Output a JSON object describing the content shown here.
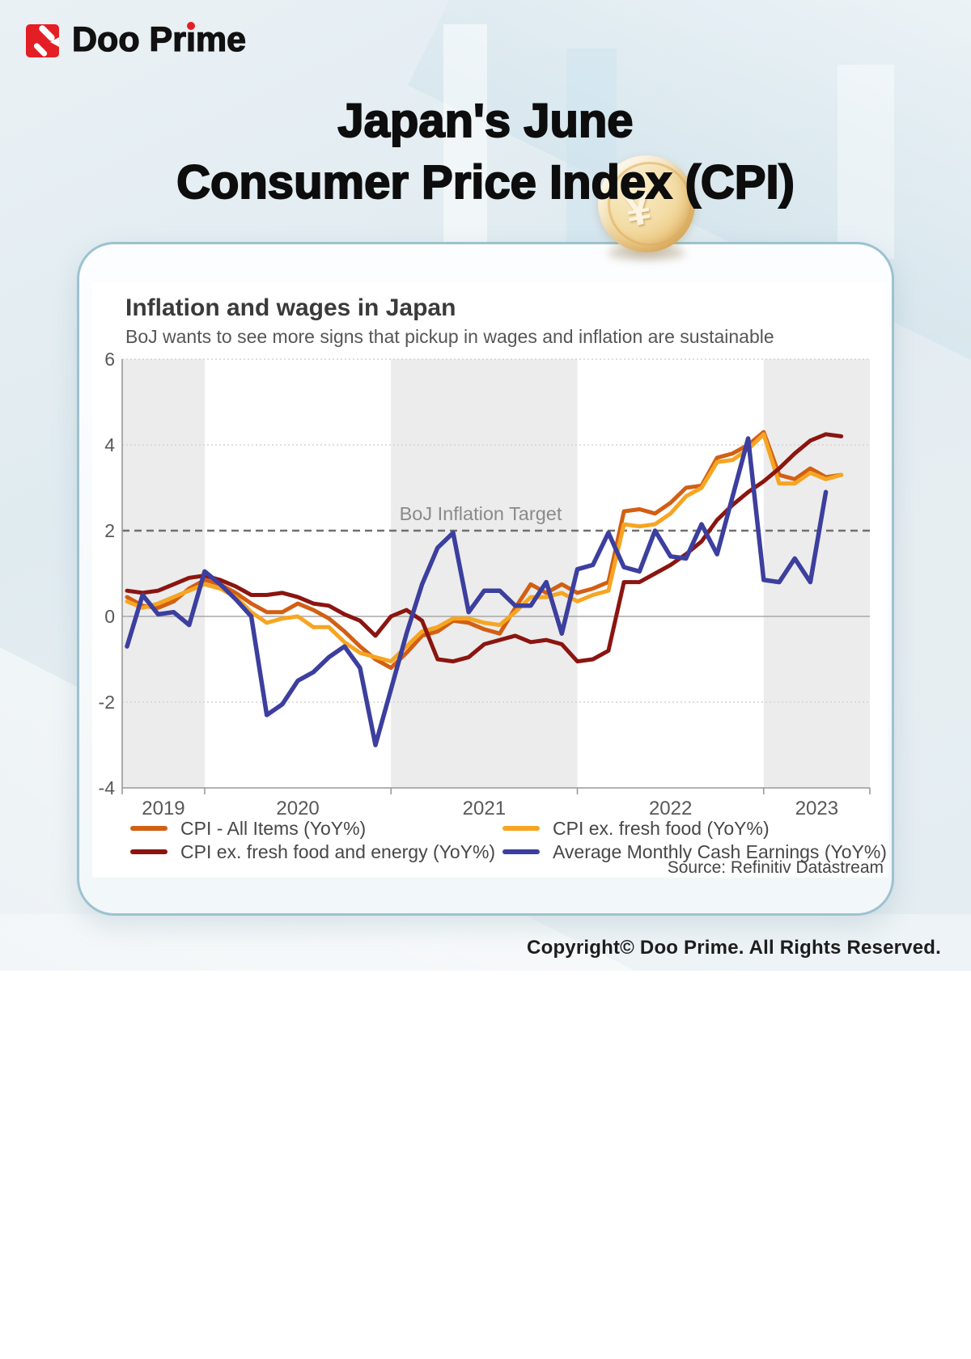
{
  "brand": {
    "name": "Doo Prime",
    "wordmark_pre": "Doo Pr",
    "wordmark_i": "ı",
    "wordmark_post": "me"
  },
  "header": {
    "title_line1": "Japan's June",
    "title_line2": "Consumer Price Index (CPI)",
    "coin_symbol": "¥"
  },
  "chart_data": {
    "type": "line",
    "title": "Inflation and wages in Japan",
    "subtitle": "BoJ wants to see more signs that pickup in wages and inflation are sustainable",
    "source": "Source: Refinitiv Datastream",
    "ylim": [
      -4,
      6
    ],
    "yticks": [
      6,
      4,
      2,
      0,
      -2,
      -4
    ],
    "xticks_years": [
      "2019",
      "2020",
      "2021",
      "2022",
      "2023"
    ],
    "shaded_year_bands": [
      "2019",
      "2021",
      "2023"
    ],
    "grid": "dotted-horizontal",
    "legend_position": "bottom-two-columns",
    "target_line": {
      "value": 2,
      "label": "BoJ Inflation Target",
      "style": "dashed"
    },
    "x_months": [
      "2019-08",
      "2019-09",
      "2019-10",
      "2019-11",
      "2019-12",
      "2020-01",
      "2020-02",
      "2020-03",
      "2020-04",
      "2020-05",
      "2020-06",
      "2020-07",
      "2020-08",
      "2020-09",
      "2020-10",
      "2020-11",
      "2020-12",
      "2021-01",
      "2021-02",
      "2021-03",
      "2021-04",
      "2021-05",
      "2021-06",
      "2021-07",
      "2021-08",
      "2021-09",
      "2021-10",
      "2021-11",
      "2021-12",
      "2022-01",
      "2022-02",
      "2022-03",
      "2022-04",
      "2022-05",
      "2022-06",
      "2022-07",
      "2022-08",
      "2022-09",
      "2022-10",
      "2022-11",
      "2022-12",
      "2023-01",
      "2023-02",
      "2023-03",
      "2023-04",
      "2023-05",
      "2023-06"
    ],
    "series": [
      {
        "name": "CPI - All Items (YoY%)",
        "color": "#d25f14",
        "line_width": 5,
        "values": [
          0.45,
          0.25,
          0.2,
          0.35,
          0.65,
          0.85,
          0.75,
          0.55,
          0.3,
          0.1,
          0.1,
          0.3,
          0.15,
          -0.05,
          -0.35,
          -0.7,
          -1.0,
          -1.2,
          -0.85,
          -0.45,
          -0.35,
          -0.1,
          -0.15,
          -0.3,
          -0.4,
          0.2,
          0.75,
          0.55,
          0.75,
          0.55,
          0.65,
          0.8,
          2.45,
          2.5,
          2.4,
          2.65,
          3.0,
          3.05,
          3.7,
          3.8,
          4.0,
          4.3,
          3.3,
          3.2,
          3.45,
          3.25,
          3.3
        ]
      },
      {
        "name": "CPI ex. fresh food (YoY%)",
        "color": "#f6a523",
        "line_width": 5,
        "values": [
          0.35,
          0.2,
          0.3,
          0.45,
          0.6,
          0.75,
          0.65,
          0.45,
          0.1,
          -0.15,
          -0.05,
          0.0,
          -0.25,
          -0.25,
          -0.6,
          -0.85,
          -0.95,
          -1.05,
          -0.7,
          -0.35,
          -0.25,
          -0.05,
          -0.05,
          -0.15,
          -0.2,
          0.1,
          0.45,
          0.45,
          0.55,
          0.35,
          0.5,
          0.6,
          2.15,
          2.1,
          2.15,
          2.4,
          2.8,
          3.0,
          3.6,
          3.65,
          3.9,
          4.25,
          3.1,
          3.1,
          3.35,
          3.2,
          3.3
        ]
      },
      {
        "name": "CPI ex. fresh food and energy (YoY%)",
        "color": "#8b1510",
        "line_width": 5,
        "values": [
          0.6,
          0.55,
          0.6,
          0.75,
          0.9,
          0.95,
          0.85,
          0.7,
          0.5,
          0.5,
          0.55,
          0.45,
          0.3,
          0.25,
          0.05,
          -0.1,
          -0.45,
          0.0,
          0.15,
          -0.1,
          -1.0,
          -1.05,
          -0.95,
          -0.65,
          -0.55,
          -0.45,
          -0.6,
          -0.55,
          -0.65,
          -1.05,
          -1.0,
          -0.8,
          0.8,
          0.8,
          1.0,
          1.2,
          1.45,
          1.75,
          2.25,
          2.6,
          2.9,
          3.15,
          3.45,
          3.8,
          4.1,
          4.25,
          4.2
        ]
      },
      {
        "name": "Average Monthly Cash Earnings (YoY%)",
        "color": "#3c3f9e",
        "line_width": 5.5,
        "values": [
          -0.7,
          0.5,
          0.05,
          0.1,
          -0.2,
          1.05,
          0.75,
          0.4,
          0.0,
          -2.3,
          -2.05,
          -1.5,
          -1.3,
          -0.95,
          -0.7,
          -1.2,
          -3.0,
          -1.7,
          -0.4,
          0.75,
          1.6,
          1.95,
          0.1,
          0.6,
          0.6,
          0.25,
          0.25,
          0.8,
          -0.4,
          1.1,
          1.2,
          1.95,
          1.15,
          1.05,
          2.0,
          1.4,
          1.35,
          2.15,
          1.45,
          2.8,
          4.15,
          0.85,
          0.8,
          1.35,
          0.8,
          2.9,
          null
        ]
      }
    ],
    "colors": {
      "band_gray": "#ececec",
      "grid_dotted": "#d4d4d4",
      "zero_line": "#a8a8a8",
      "target_dash": "#6f6f6f",
      "axis": "#9a9a9a",
      "tick_label": "#58585a",
      "target_label": "#8a8a8a"
    }
  },
  "footer": {
    "copyright": "Copyright© Doo Prime. All Rights Reserved."
  }
}
